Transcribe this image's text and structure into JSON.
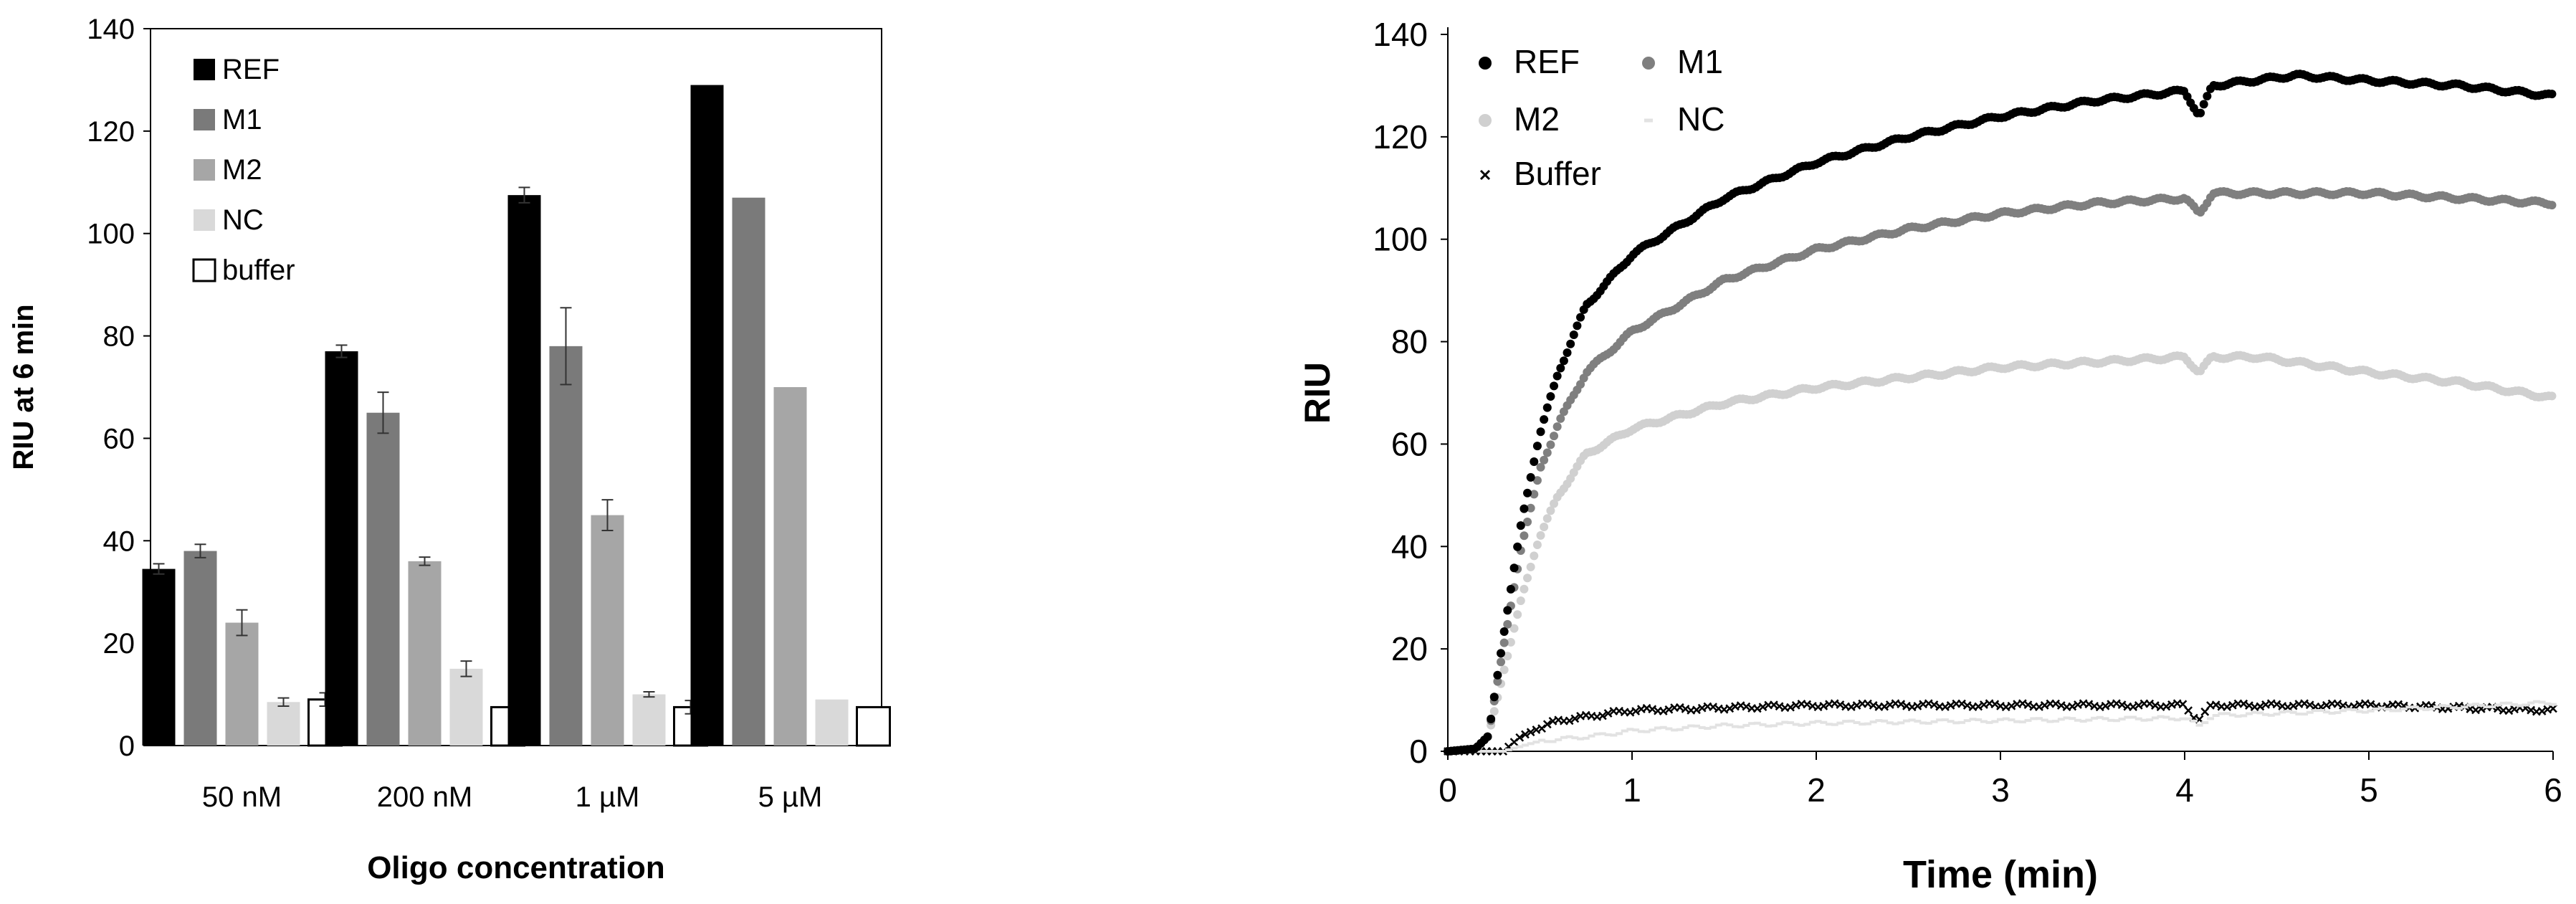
{
  "chart_data": [
    {
      "type": "bar",
      "title": "",
      "xlabel": "Oligo concentration",
      "ylabel": "RIU at 6 min",
      "ylim": [
        0,
        140
      ],
      "yticks": [
        0,
        20,
        40,
        60,
        80,
        100,
        120,
        140
      ],
      "grid": false,
      "legend_position": "top-left",
      "categories": [
        "50 nM",
        "200 nM",
        "1 µM",
        "5 µM"
      ],
      "series": [
        {
          "name": "REF",
          "color": "#000000",
          "values": [
            34.5,
            77,
            107.5,
            129
          ],
          "errors": [
            1,
            1.2,
            1.5,
            0
          ]
        },
        {
          "name": "M1",
          "color": "#7a7a7a",
          "values": [
            38,
            65,
            78,
            107
          ],
          "errors": [
            1.3,
            4,
            7.5,
            0
          ]
        },
        {
          "name": "M2",
          "color": "#a6a6a6",
          "values": [
            24,
            36,
            45,
            70
          ],
          "errors": [
            2.5,
            0.8,
            3,
            0
          ]
        },
        {
          "name": "NC",
          "color": "#d9d9d9",
          "values": [
            8.5,
            15,
            10,
            9
          ],
          "errors": [
            0.8,
            1.5,
            0.5,
            0
          ]
        },
        {
          "name": "buffer",
          "color": "#ffffff",
          "values": [
            9,
            7.5,
            7.5,
            7.5
          ],
          "errors": [
            1.3,
            0,
            1.3,
            0
          ]
        }
      ]
    },
    {
      "type": "scatter",
      "title": "",
      "xlabel": "Time (min)",
      "ylabel": "RIU",
      "xlim": [
        0,
        6
      ],
      "ylim": [
        0,
        140
      ],
      "xticks": [
        0,
        1,
        2,
        3,
        4,
        5,
        6
      ],
      "yticks": [
        0,
        20,
        40,
        60,
        80,
        100,
        120,
        140
      ],
      "grid": false,
      "legend_position": "top-left",
      "series": [
        {
          "name": "REF",
          "color": "#000000",
          "marker": "circle",
          "anchors": [
            [
              0,
              0
            ],
            [
              0.15,
              0.5
            ],
            [
              0.22,
              3
            ],
            [
              0.3,
              22
            ],
            [
              0.4,
              45
            ],
            [
              0.5,
              62
            ],
            [
              0.6,
              74
            ],
            [
              0.75,
              87
            ],
            [
              1,
              97
            ],
            [
              1.5,
              108
            ],
            [
              2,
              115
            ],
            [
              2.5,
              120
            ],
            [
              3,
              124
            ],
            [
              3.5,
              127
            ],
            [
              4,
              129
            ],
            [
              4.08,
              124
            ],
            [
              4.15,
              130
            ],
            [
              4.6,
              132
            ],
            [
              5,
              131
            ],
            [
              5.5,
              130
            ],
            [
              6,
              128
            ]
          ]
        },
        {
          "name": "M1",
          "color": "#7f7f7f",
          "marker": "circle",
          "anchors": [
            [
              0,
              0
            ],
            [
              0.15,
              0.5
            ],
            [
              0.22,
              3
            ],
            [
              0.3,
              20
            ],
            [
              0.4,
              40
            ],
            [
              0.5,
              55
            ],
            [
              0.6,
              64
            ],
            [
              0.75,
              74
            ],
            [
              1,
              82
            ],
            [
              1.5,
              92
            ],
            [
              2,
              98
            ],
            [
              2.5,
              102
            ],
            [
              3,
              105
            ],
            [
              3.5,
              107
            ],
            [
              4,
              108
            ],
            [
              4.08,
              105
            ],
            [
              4.15,
              109
            ],
            [
              4.6,
              109
            ],
            [
              5,
              109
            ],
            [
              5.5,
              108
            ],
            [
              6,
              107
            ]
          ]
        },
        {
          "name": "M2",
          "color": "#d0d0d0",
          "marker": "circle",
          "anchors": [
            [
              0,
              0
            ],
            [
              0.15,
              0.5
            ],
            [
              0.22,
              3
            ],
            [
              0.3,
              15
            ],
            [
              0.4,
              30
            ],
            [
              0.5,
              42
            ],
            [
              0.6,
              50
            ],
            [
              0.75,
              58
            ],
            [
              1,
              63
            ],
            [
              1.5,
              68
            ],
            [
              2,
              71
            ],
            [
              2.5,
              73
            ],
            [
              3,
              75
            ],
            [
              3.5,
              76
            ],
            [
              4,
              77
            ],
            [
              4.08,
              74
            ],
            [
              4.15,
              77
            ],
            [
              4.4,
              77
            ],
            [
              5,
              74
            ],
            [
              5.5,
              72
            ],
            [
              6,
              69
            ]
          ]
        },
        {
          "name": "NC",
          "color": "#e2e2e2",
          "marker": "dash",
          "anchors": [
            [
              0,
              0
            ],
            [
              0.3,
              0
            ],
            [
              0.5,
              2
            ],
            [
              0.8,
              3
            ],
            [
              1,
              4
            ],
            [
              1.5,
              5
            ],
            [
              2,
              5.5
            ],
            [
              3,
              6
            ],
            [
              4,
              6.5
            ],
            [
              4.08,
              5
            ],
            [
              4.15,
              7
            ],
            [
              5,
              8
            ],
            [
              6,
              9.5
            ]
          ]
        },
        {
          "name": "Buffer",
          "color": "#000000",
          "marker": "x",
          "anchors": [
            [
              0,
              0
            ],
            [
              0.3,
              0
            ],
            [
              0.4,
              3
            ],
            [
              0.6,
              6
            ],
            [
              0.8,
              7
            ],
            [
              1,
              8
            ],
            [
              1.5,
              8.5
            ],
            [
              2,
              9
            ],
            [
              3,
              9
            ],
            [
              4,
              9
            ],
            [
              4.07,
              6
            ],
            [
              4.15,
              9
            ],
            [
              5,
              9
            ],
            [
              6,
              8
            ]
          ]
        }
      ]
    }
  ]
}
